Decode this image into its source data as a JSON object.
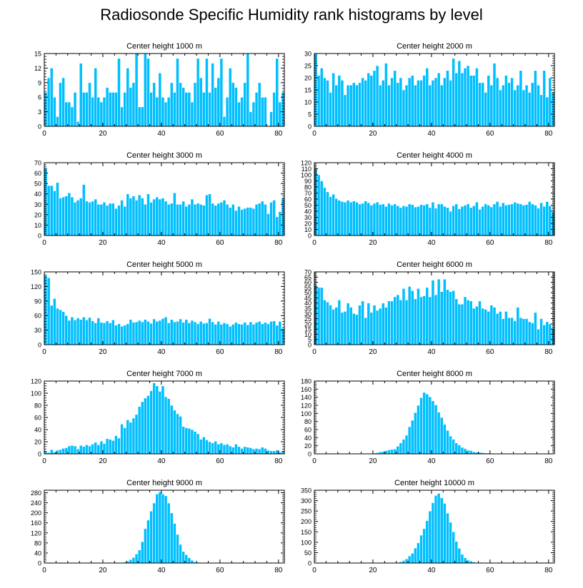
{
  "title": "Radiosonde Specific Humidity rank histograms by level",
  "bar_color": "#00BFFF",
  "chart_data": [
    {
      "type": "bar",
      "title": "Center height 1000 m",
      "xlim": [
        0,
        82
      ],
      "ylim": [
        0,
        15
      ],
      "xticks": [
        0,
        20,
        40,
        60,
        80
      ],
      "yticks": [
        0,
        3,
        6,
        9,
        12,
        15
      ],
      "values": [
        7,
        10,
        12,
        6,
        2,
        9,
        10,
        5,
        5,
        4,
        7,
        1,
        13,
        7,
        7,
        9,
        6,
        12,
        6,
        5,
        6,
        8,
        7,
        7,
        7,
        14,
        4,
        7,
        12,
        8,
        9,
        15,
        4,
        4,
        15,
        14,
        7,
        9,
        6,
        11,
        6,
        5,
        6,
        9,
        7,
        14,
        9,
        8,
        7,
        7,
        5,
        9,
        14,
        10,
        7,
        14,
        7,
        13,
        8,
        10,
        14,
        2,
        6,
        12,
        9,
        8,
        5,
        6,
        9,
        15,
        3,
        5,
        7,
        9,
        6,
        6,
        0,
        3,
        7,
        14,
        5,
        7
      ]
    },
    {
      "type": "bar",
      "title": "Center height 2000 m",
      "xlim": [
        0,
        82
      ],
      "ylim": [
        0,
        30
      ],
      "xticks": [
        0,
        20,
        40,
        60,
        80
      ],
      "yticks": [
        0,
        5,
        10,
        15,
        20,
        25,
        30
      ],
      "values": [
        30,
        21,
        24,
        20,
        19,
        14,
        22,
        17,
        21,
        19,
        13,
        17,
        17,
        18,
        17,
        18,
        20,
        19,
        22,
        21,
        23,
        25,
        17,
        19,
        26,
        17,
        20,
        23,
        18,
        20,
        15,
        17,
        20,
        21,
        17,
        19,
        19,
        21,
        24,
        17,
        19,
        20,
        22,
        17,
        20,
        23,
        19,
        28,
        22,
        27,
        22,
        24,
        25,
        21,
        21,
        24,
        18,
        18,
        14,
        21,
        17,
        26,
        20,
        15,
        17,
        21,
        18,
        20,
        15,
        17,
        23,
        15,
        17,
        14,
        18,
        23,
        17,
        13,
        23,
        12,
        20,
        14
      ]
    },
    {
      "type": "bar",
      "title": "Center height 3000 m",
      "xlim": [
        0,
        82
      ],
      "ylim": [
        0,
        70
      ],
      "xticks": [
        0,
        20,
        40,
        60,
        80
      ],
      "yticks": [
        0,
        10,
        20,
        30,
        40,
        50,
        60,
        70
      ],
      "values": [
        65,
        48,
        48,
        43,
        51,
        36,
        37,
        38,
        41,
        37,
        32,
        34,
        36,
        49,
        33,
        32,
        33,
        35,
        30,
        30,
        32,
        29,
        31,
        31,
        26,
        29,
        34,
        28,
        40,
        36,
        38,
        34,
        39,
        36,
        30,
        40,
        32,
        35,
        37,
        35,
        36,
        33,
        30,
        31,
        41,
        30,
        30,
        33,
        28,
        30,
        35,
        30,
        31,
        30,
        29,
        39,
        40,
        31,
        29,
        31,
        32,
        34,
        30,
        27,
        30,
        24,
        28,
        25,
        26,
        27,
        27,
        26,
        30,
        31,
        33,
        30,
        21,
        32,
        34,
        18,
        23,
        36
      ]
    },
    {
      "type": "bar",
      "title": "Center height 4000 m",
      "xlim": [
        0,
        82
      ],
      "ylim": [
        0,
        120
      ],
      "xticks": [
        0,
        20,
        40,
        60,
        80
      ],
      "yticks": [
        0,
        10,
        20,
        30,
        40,
        50,
        60,
        70,
        80,
        90,
        100,
        110,
        120
      ],
      "values": [
        111,
        100,
        90,
        79,
        72,
        64,
        68,
        61,
        58,
        56,
        55,
        58,
        55,
        57,
        55,
        52,
        53,
        57,
        54,
        50,
        53,
        55,
        51,
        52,
        48,
        53,
        50,
        52,
        49,
        46,
        49,
        48,
        52,
        51,
        47,
        48,
        51,
        50,
        52,
        46,
        55,
        45,
        52,
        52,
        48,
        46,
        40,
        49,
        52,
        44,
        48,
        50,
        52,
        46,
        49,
        55,
        43,
        48,
        52,
        50,
        47,
        52,
        56,
        48,
        54,
        50,
        51,
        52,
        55,
        53,
        52,
        50,
        51,
        56,
        52,
        50,
        45,
        54,
        48,
        56,
        49,
        38
      ]
    },
    {
      "type": "bar",
      "title": "Center height 5000 m",
      "xlim": [
        0,
        82
      ],
      "ylim": [
        0,
        150
      ],
      "xticks": [
        0,
        20,
        40,
        60,
        80
      ],
      "yticks": [
        0,
        30,
        60,
        90,
        120,
        150
      ],
      "values": [
        143,
        138,
        81,
        95,
        75,
        72,
        68,
        60,
        50,
        57,
        51,
        55,
        52,
        57,
        51,
        56,
        49,
        45,
        55,
        46,
        45,
        49,
        45,
        51,
        40,
        43,
        38,
        40,
        43,
        52,
        46,
        47,
        50,
        47,
        52,
        48,
        44,
        53,
        48,
        50,
        54,
        57,
        45,
        52,
        47,
        48,
        53,
        46,
        52,
        45,
        50,
        47,
        43,
        48,
        44,
        45,
        54,
        47,
        42,
        48,
        42,
        45,
        43,
        38,
        42,
        46,
        43,
        42,
        46,
        41,
        47,
        42,
        46,
        48,
        43,
        46,
        43,
        48,
        49,
        40,
        48,
        34
      ]
    },
    {
      "type": "bar",
      "title": "Center height 6000 m",
      "xlim": [
        0,
        82
      ],
      "ylim": [
        0,
        70
      ],
      "xticks": [
        0,
        20,
        40,
        60,
        80
      ],
      "yticks": [
        0,
        5,
        10,
        15,
        20,
        25,
        30,
        35,
        40,
        45,
        50,
        55,
        60,
        65,
        70
      ],
      "values": [
        57,
        55,
        55,
        43,
        41,
        38,
        34,
        36,
        43,
        31,
        32,
        40,
        36,
        30,
        29,
        38,
        42,
        26,
        40,
        31,
        38,
        33,
        35,
        40,
        36,
        42,
        42,
        46,
        48,
        43,
        54,
        43,
        56,
        52,
        44,
        54,
        46,
        47,
        55,
        46,
        62,
        48,
        63,
        51,
        63,
        53,
        51,
        52,
        44,
        39,
        39,
        46,
        43,
        42,
        35,
        37,
        42,
        35,
        34,
        32,
        38,
        36,
        30,
        32,
        25,
        32,
        26,
        26,
        23,
        36,
        26,
        25,
        25,
        22,
        21,
        31,
        15,
        25,
        19,
        22,
        20,
        15
      ]
    },
    {
      "type": "bar",
      "title": "Center height 7000 m",
      "xlim": [
        0,
        82
      ],
      "ylim": [
        0,
        120
      ],
      "xticks": [
        0,
        20,
        40,
        60,
        80
      ],
      "yticks": [
        0,
        20,
        40,
        60,
        80,
        100,
        120
      ],
      "values": [
        5,
        2,
        7,
        3,
        6,
        7,
        9,
        10,
        13,
        14,
        13,
        8,
        14,
        12,
        15,
        13,
        16,
        19,
        15,
        21,
        17,
        25,
        24,
        22,
        30,
        26,
        49,
        43,
        56,
        52,
        59,
        65,
        78,
        86,
        92,
        96,
        104,
        117,
        112,
        103,
        112,
        94,
        91,
        80,
        72,
        66,
        62,
        45,
        43,
        42,
        40,
        37,
        33,
        24,
        28,
        23,
        20,
        18,
        21,
        16,
        18,
        15,
        16,
        13,
        11,
        16,
        12,
        9,
        12,
        11,
        10,
        8,
        9,
        8,
        11,
        9,
        6,
        5,
        5,
        6,
        3,
        5
      ]
    },
    {
      "type": "bar",
      "title": "Center height 8000 m",
      "xlim": [
        0,
        82
      ],
      "ylim": [
        0,
        180
      ],
      "xticks": [
        0,
        20,
        40,
        60,
        80
      ],
      "yticks": [
        0,
        20,
        40,
        60,
        80,
        100,
        120,
        140,
        160,
        180
      ],
      "values": [
        0,
        0,
        0,
        0,
        0,
        0,
        0,
        0,
        0,
        0,
        0,
        0,
        0,
        0,
        0,
        0,
        0,
        0,
        1,
        1,
        2,
        3,
        5,
        6,
        8,
        10,
        11,
        12,
        19,
        27,
        36,
        46,
        67,
        83,
        102,
        120,
        139,
        152,
        148,
        141,
        131,
        121,
        103,
        90,
        73,
        58,
        44,
        36,
        27,
        22,
        16,
        13,
        9,
        8,
        5,
        4,
        4,
        3,
        2,
        2,
        1,
        1,
        1,
        1,
        1,
        0,
        1,
        0,
        1,
        0,
        0,
        0,
        0,
        0,
        0,
        0,
        0,
        0,
        0,
        0,
        0,
        0
      ]
    },
    {
      "type": "bar",
      "title": "Center height 9000 m",
      "xlim": [
        0,
        82
      ],
      "ylim": [
        0,
        290
      ],
      "xticks": [
        0,
        20,
        40,
        60,
        80
      ],
      "yticks": [
        0,
        40,
        80,
        120,
        160,
        200,
        240,
        280
      ],
      "values": [
        0,
        0,
        0,
        0,
        0,
        0,
        0,
        0,
        0,
        0,
        0,
        0,
        0,
        0,
        0,
        0,
        0,
        0,
        0,
        0,
        0,
        0,
        0,
        0,
        0,
        0,
        0,
        3,
        8,
        14,
        22,
        36,
        52,
        85,
        137,
        171,
        207,
        239,
        275,
        283,
        275,
        268,
        239,
        200,
        158,
        114,
        74,
        46,
        33,
        21,
        11,
        4,
        3,
        2,
        1,
        0,
        1,
        0,
        0,
        0,
        0,
        0,
        0,
        0,
        0,
        0,
        0,
        1,
        0,
        0,
        0,
        0,
        0,
        0,
        0,
        0,
        0,
        0,
        0,
        0,
        0,
        0
      ]
    },
    {
      "type": "bar",
      "title": "Center height 10000 m",
      "xlim": [
        0,
        82
      ],
      "ylim": [
        0,
        350
      ],
      "xticks": [
        0,
        20,
        40,
        60,
        80
      ],
      "yticks": [
        0,
        50,
        100,
        150,
        200,
        250,
        300,
        350
      ],
      "values": [
        0,
        0,
        0,
        0,
        0,
        0,
        0,
        0,
        0,
        0,
        0,
        0,
        0,
        0,
        0,
        0,
        0,
        0,
        0,
        0,
        0,
        0,
        0,
        0,
        0,
        0,
        0,
        1,
        3,
        6,
        12,
        20,
        34,
        47,
        72,
        97,
        134,
        165,
        204,
        250,
        290,
        325,
        335,
        314,
        287,
        240,
        196,
        150,
        104,
        71,
        42,
        25,
        14,
        10,
        5,
        3,
        2,
        2,
        1,
        1,
        0,
        0,
        0,
        0,
        0,
        0,
        0,
        0,
        0,
        0,
        0,
        0,
        0,
        0,
        0,
        0,
        0,
        0,
        0,
        0,
        0,
        0
      ]
    }
  ]
}
